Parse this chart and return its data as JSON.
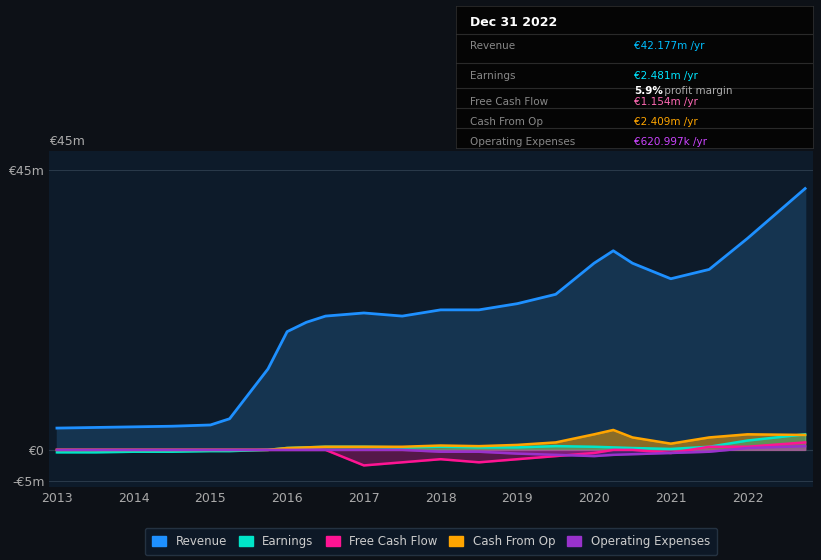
{
  "bg_color": "#0d1117",
  "plot_bg_color": "#0d1b2a",
  "grid_color": "#2a3a4a",
  "title_box": {
    "date": "Dec 31 2022",
    "rows": [
      {
        "label": "Revenue",
        "value": "€42.177m /yr",
        "value_color": "#00bfff"
      },
      {
        "label": "Earnings",
        "value": "€2.481m /yr",
        "value_color": "#00e5ff"
      },
      {
        "label": "",
        "value": "",
        "value_color": "#ffffff"
      },
      {
        "label": "Free Cash Flow",
        "value": "€1.154m /yr",
        "value_color": "#ff69b4"
      },
      {
        "label": "Cash From Op",
        "value": "€2.409m /yr",
        "value_color": "#ffa500"
      },
      {
        "label": "Operating Expenses",
        "value": "€620.997k /yr",
        "value_color": "#cc44ff"
      }
    ]
  },
  "years": [
    2013,
    2013.5,
    2014,
    2014.5,
    2015,
    2015.25,
    2015.5,
    2015.75,
    2016,
    2016.25,
    2016.5,
    2017,
    2017.5,
    2018,
    2018.5,
    2019,
    2019.5,
    2020,
    2020.25,
    2020.5,
    2021,
    2021.5,
    2022,
    2022.75
  ],
  "revenue": [
    3.5,
    3.6,
    3.7,
    3.8,
    4.0,
    5.0,
    9.0,
    13.0,
    19.0,
    20.5,
    21.5,
    22.0,
    21.5,
    22.5,
    22.5,
    23.5,
    25.0,
    30.0,
    32.0,
    30.0,
    27.5,
    29.0,
    34.0,
    42.0
  ],
  "earnings": [
    -0.4,
    -0.4,
    -0.3,
    -0.3,
    -0.2,
    -0.2,
    -0.1,
    0.0,
    0.3,
    0.4,
    0.5,
    0.5,
    0.4,
    0.5,
    0.4,
    0.4,
    0.6,
    0.5,
    0.4,
    0.3,
    0.15,
    0.5,
    1.5,
    2.5
  ],
  "free_cash_flow": [
    0.0,
    0.0,
    0.0,
    0.0,
    0.0,
    0.0,
    0.0,
    0.0,
    0.0,
    0.0,
    0.0,
    -2.5,
    -2.0,
    -1.5,
    -2.0,
    -1.5,
    -1.0,
    -0.5,
    0.0,
    0.0,
    -0.5,
    0.5,
    0.5,
    1.2
  ],
  "cash_from_op": [
    0.0,
    0.0,
    0.0,
    0.0,
    0.0,
    0.0,
    0.0,
    0.0,
    0.3,
    0.4,
    0.5,
    0.5,
    0.5,
    0.7,
    0.6,
    0.8,
    1.2,
    2.5,
    3.2,
    2.0,
    1.0,
    2.0,
    2.5,
    2.4
  ],
  "operating_expenses": [
    0.0,
    0.0,
    0.0,
    0.0,
    0.0,
    0.0,
    0.0,
    0.0,
    0.0,
    0.0,
    0.0,
    0.0,
    0.0,
    -0.3,
    -0.3,
    -0.6,
    -0.8,
    -1.0,
    -0.8,
    -0.7,
    -0.5,
    -0.3,
    0.3,
    0.6
  ],
  "revenue_color": "#1e90ff",
  "revenue_fill": "#153450",
  "earnings_color": "#00e5c8",
  "free_cash_flow_color": "#ff1493",
  "cash_from_op_color": "#ffa500",
  "operating_expenses_color": "#9932cc",
  "ylim": [
    -6,
    48
  ],
  "yticks": [
    -5,
    0,
    45
  ],
  "ytick_labels": [
    "-€5m",
    "€0",
    "€45m"
  ],
  "xticks": [
    2013,
    2014,
    2015,
    2016,
    2017,
    2018,
    2019,
    2020,
    2021,
    2022
  ],
  "legend_items": [
    {
      "label": "Revenue",
      "color": "#1e90ff"
    },
    {
      "label": "Earnings",
      "color": "#00e5c8"
    },
    {
      "label": "Free Cash Flow",
      "color": "#ff1493"
    },
    {
      "label": "Cash From Op",
      "color": "#ffa500"
    },
    {
      "label": "Operating Expenses",
      "color": "#9932cc"
    }
  ]
}
